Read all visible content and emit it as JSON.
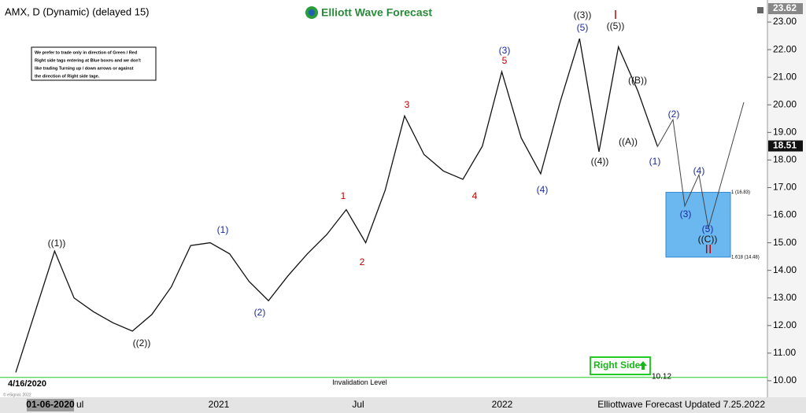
{
  "chart_data": {
    "type": "line",
    "title": "AMX, D (Dynamic) (delayed 15)",
    "logo": "Elliott Wave Forecast",
    "note": [
      "We prefer to trade only in direction of Green / Red",
      "Right side tags entering at Blue boxes and we don't",
      "like trading Turning up / down arrows or against",
      "the direction of Right side tage."
    ],
    "categories": [
      null,
      null,
      null,
      null,
      null,
      null,
      null,
      null,
      null,
      null,
      null,
      null,
      null,
      null,
      null,
      null,
      null,
      null,
      null,
      null,
      null,
      null,
      null,
      null,
      null,
      null,
      null,
      null,
      null,
      null,
      null,
      null,
      null,
      null
    ],
    "series": [
      {
        "name": "AMX",
        "color": "#111111",
        "values": [
          10.3,
          12.5,
          14.7,
          13.0,
          12.5,
          12.1,
          11.8,
          12.4,
          13.4,
          14.9,
          15.0,
          14.6,
          13.6,
          12.9,
          13.8,
          14.6,
          15.3,
          16.2,
          15.0,
          16.9,
          19.6,
          18.2,
          17.6,
          17.3,
          18.5,
          21.2,
          18.8,
          17.5,
          20.1,
          22.4,
          18.3,
          22.1,
          20.5,
          18.51
        ]
      }
    ],
    "ylim": [
      9.4,
      23.8
    ],
    "yticks": [
      {
        "value": 10,
        "label": "10.00"
      },
      {
        "value": 11,
        "label": "11.00"
      },
      {
        "value": 12,
        "label": "12.00"
      },
      {
        "value": 13,
        "label": "13.00"
      },
      {
        "value": 14,
        "label": "14.00"
      },
      {
        "value": 15,
        "label": "15.00"
      },
      {
        "value": 16,
        "label": "16.00"
      },
      {
        "value": 17,
        "label": "17.00"
      },
      {
        "value": 18,
        "label": "18.00"
      },
      {
        "value": 19,
        "label": "19.00"
      },
      {
        "value": 20,
        "label": "20.00"
      },
      {
        "value": 21,
        "label": "21.00"
      },
      {
        "value": 22,
        "label": "22.00"
      },
      {
        "value": 23,
        "label": "23.00"
      }
    ],
    "top_price": 23.62,
    "x_labels": [
      "01-06-2020",
      "ul",
      "2021",
      "Jul",
      "2022"
    ],
    "start_date": "4/16/2020",
    "invalidation": {
      "value": 10.12,
      "label": "Invalidation Level"
    },
    "right_side": "Right Side",
    "fib_levels": [
      {
        "price": 16.83,
        "label": "1 (16.83)"
      },
      {
        "price": 14.48,
        "label": "1.618 (14.48)"
      }
    ],
    "box_color": "#6bb8f0",
    "annotations": [
      {
        "text": "((1))",
        "color": "#111111"
      },
      {
        "text": "((2))",
        "color": "#111111"
      },
      {
        "text": "(1)",
        "color": "#1a2aa0"
      },
      {
        "text": "(2)",
        "color": "#1a2aa0"
      },
      {
        "text": "1",
        "color": "#c00000"
      },
      {
        "text": "2",
        "color": "#c00000"
      },
      {
        "text": "3",
        "color": "#c00000"
      },
      {
        "text": "4",
        "color": "#c00000"
      },
      {
        "text": "5",
        "color": "#c00000"
      },
      {
        "text": "(3)",
        "color": "#1a2aa0"
      },
      {
        "text": "(4)",
        "color": "#1a2aa0"
      },
      {
        "text": "(5)",
        "color": "#1a2aa0"
      },
      {
        "text": "((3))",
        "color": "#111111"
      },
      {
        "text": "((4))",
        "color": "#111111"
      },
      {
        "text": "((5))",
        "color": "#111111"
      },
      {
        "text": "I",
        "color": "#c00000"
      },
      {
        "text": "((A))",
        "color": "#111111"
      },
      {
        "text": "((B))",
        "color": "#111111"
      },
      {
        "text": "(1)",
        "color": "#1a2aa0"
      },
      {
        "text": "(2)",
        "color": "#1a2aa0"
      },
      {
        "text": "(3)",
        "color": "#1a2aa0"
      },
      {
        "text": "(4)",
        "color": "#1a2aa0"
      },
      {
        "text": "(5)",
        "color": "#1a2aa0"
      },
      {
        "text": "((C))",
        "color": "#111111"
      },
      {
        "text": "II",
        "color": "#c00000"
      }
    ],
    "footer": "Elliottwave Forecast Updated 7.25.2022",
    "copyright": "© eSignal, 2022"
  }
}
